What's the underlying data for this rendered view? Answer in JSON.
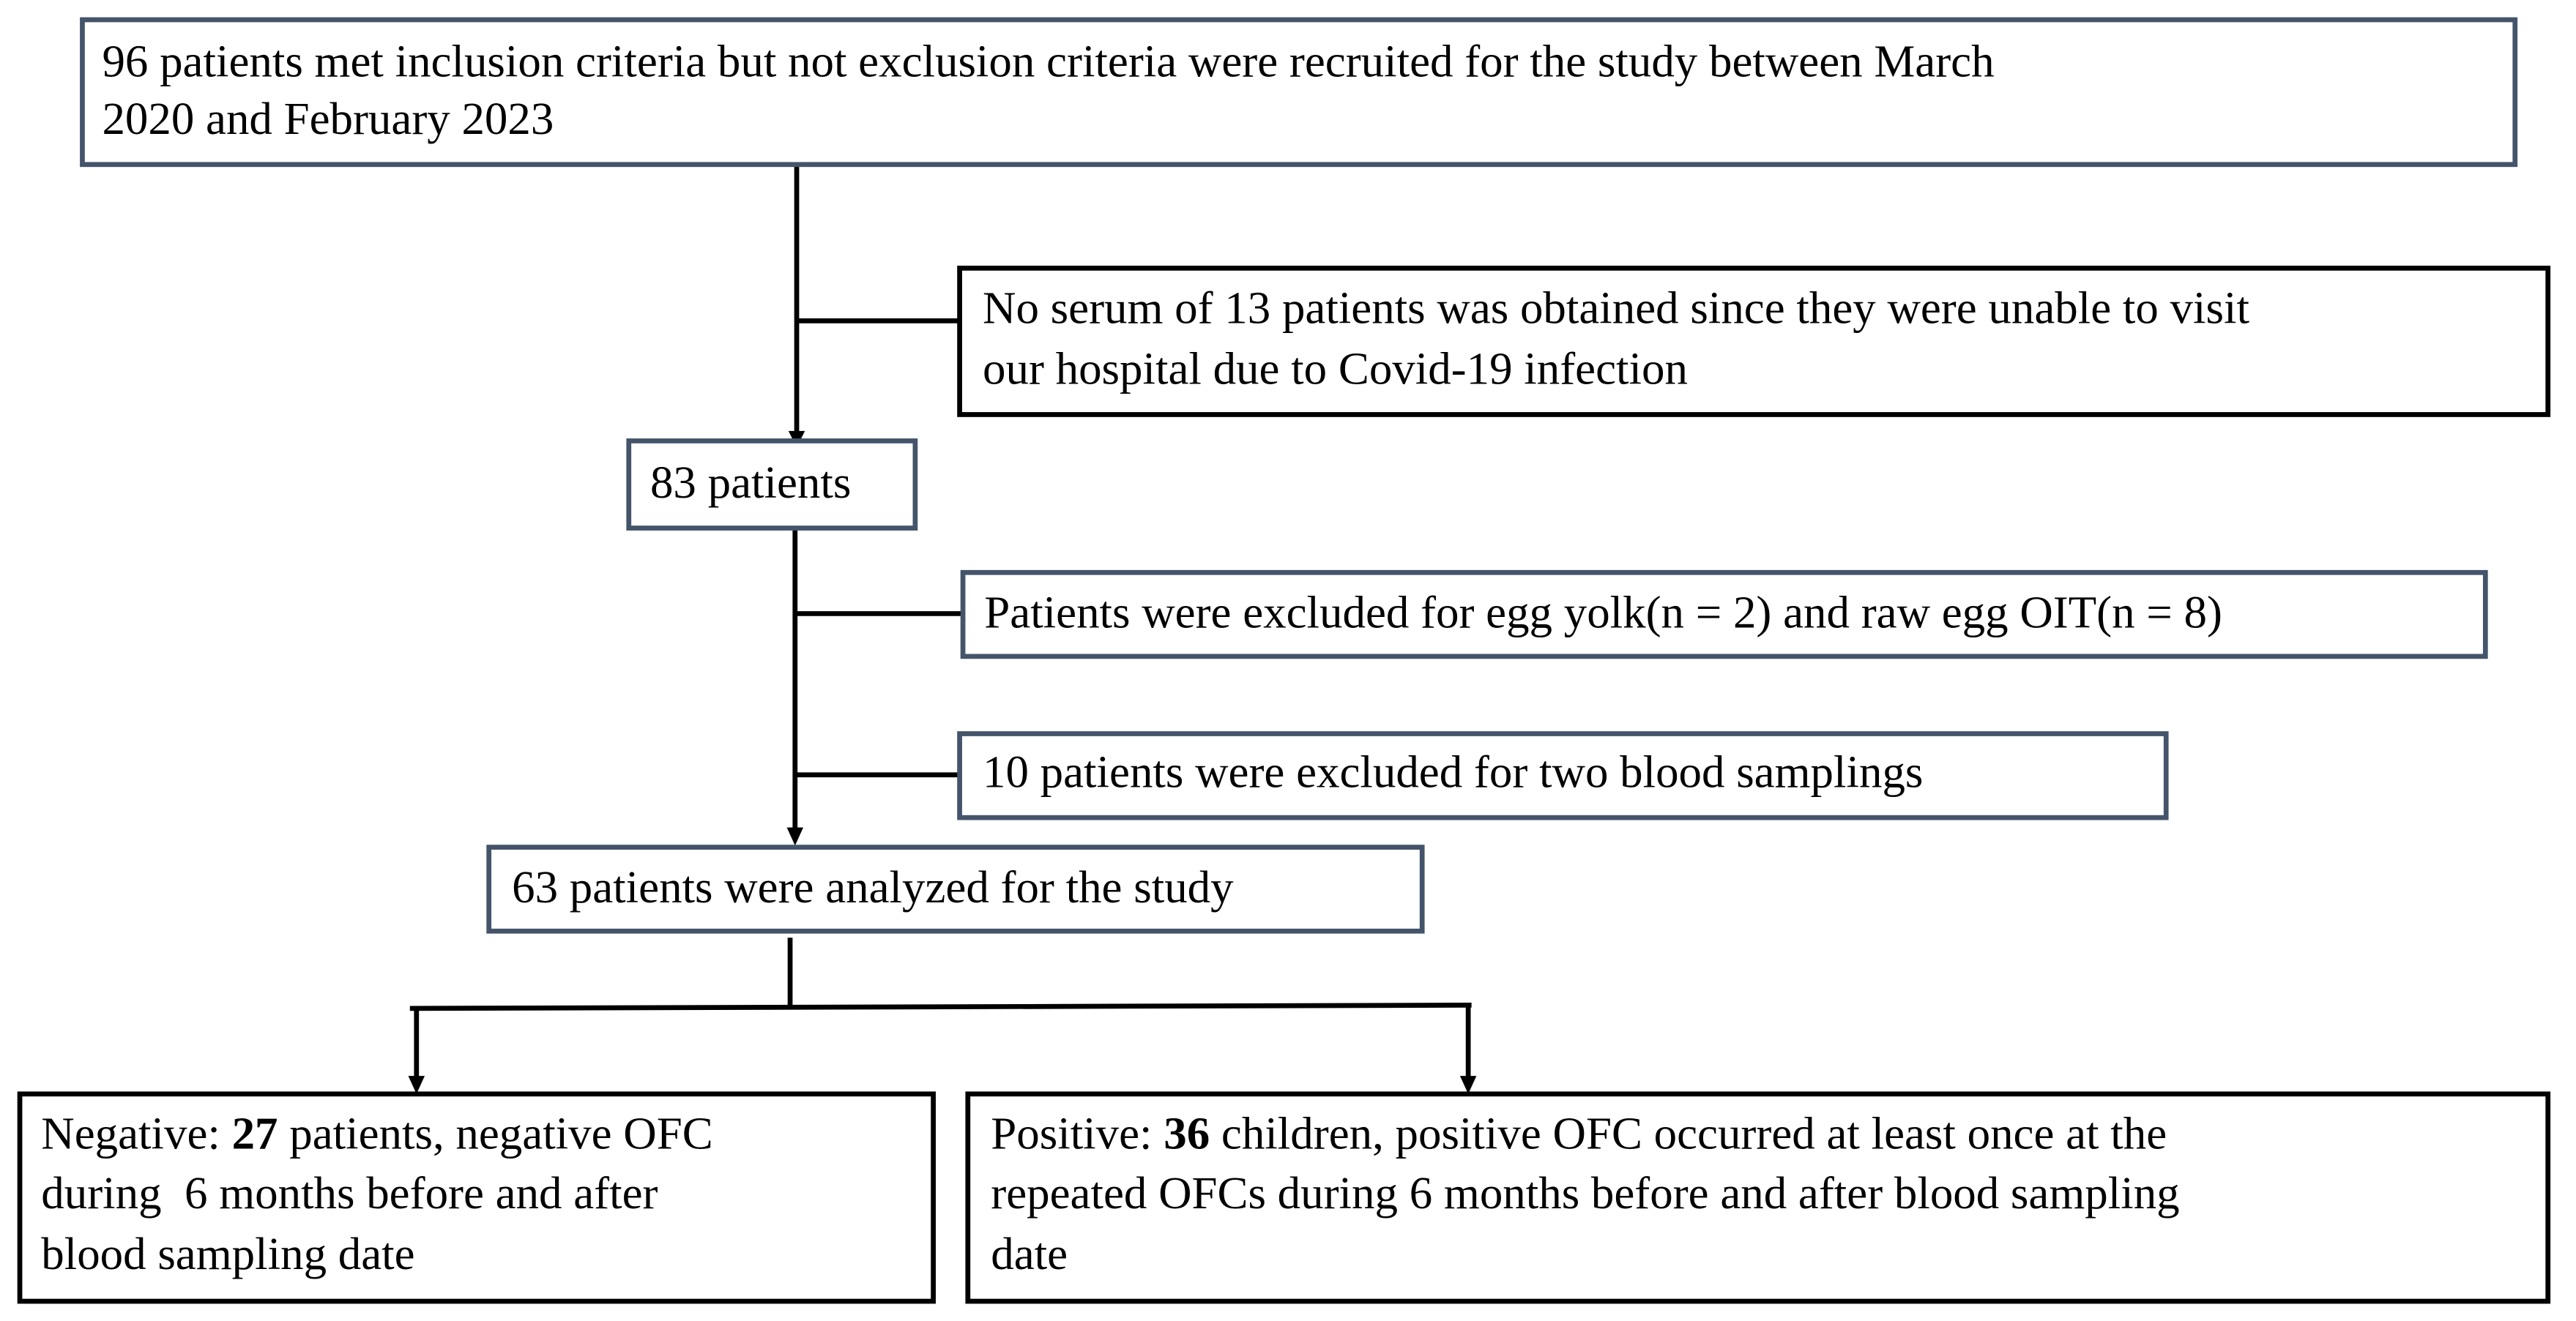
{
  "boxes": [
    {
      "lines": [
        "96 patients met inclusion criteria but not exclusion criteria were recruited for the study between March",
        "2020 and February 2023"
      ]
    },
    {
      "lines": [
        "No serum of 13 patients was obtained since they were unable to visit",
        "our hospital due to Covid-19 infection"
      ]
    },
    {
      "lines": [
        "83 patients"
      ]
    },
    {
      "lines": [
        "Patients were excluded for egg yolk(n = 2) and raw egg OIT(n = 8)"
      ]
    },
    {
      "lines": [
        "10 patients were excluded for two blood samplings"
      ]
    },
    {
      "lines": [
        "63 patients were analyzed for the study"
      ]
    },
    {
      "label": "Negative:",
      "count": "27",
      "first_rest": "patients, negative OFC",
      "lines": [
        "during  6 months before and after",
        "blood sampling date"
      ]
    },
    {
      "label": "Positive:",
      "count": "36",
      "first_rest": "children, positive OFC occurred at least once at the",
      "lines": [
        "repeated OFCs during 6 months before and after blood sampling",
        "date"
      ]
    }
  ]
}
